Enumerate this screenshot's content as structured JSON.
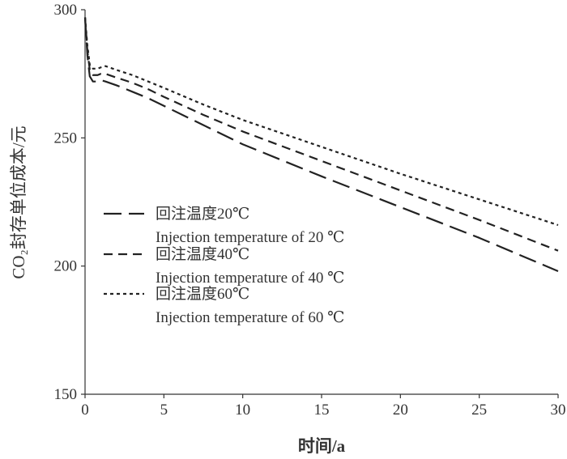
{
  "chart_data": {
    "type": "line",
    "title": "",
    "xlabel": "时间/a",
    "ylabel": "CO₂封存单位成本/元",
    "xlim": [
      0,
      30
    ],
    "ylim": [
      150,
      300
    ],
    "xticks": [
      0,
      5,
      10,
      15,
      20,
      25,
      30
    ],
    "yticks": [
      150,
      200,
      250,
      300
    ],
    "grid": false,
    "legend_position": "left-center",
    "series": [
      {
        "name": "回注温度20℃",
        "name_en": "Injection temperature of 20 ℃",
        "dash": "long-dash",
        "color": "#222222",
        "x": [
          0,
          0.15,
          0.3,
          0.5,
          0.8,
          1.0,
          1.3,
          2,
          3,
          4,
          5,
          7.5,
          10,
          15,
          20,
          25,
          30
        ],
        "y": [
          297,
          282,
          274,
          272,
          272,
          272.5,
          272,
          270.5,
          268,
          265.5,
          262.5,
          255,
          247.5,
          235,
          223,
          211,
          198
        ]
      },
      {
        "name": "回注温度40℃",
        "name_en": "Injection temperature of 40 ℃",
        "dash": "dash",
        "color": "#222222",
        "x": [
          0,
          0.15,
          0.3,
          0.5,
          0.8,
          1.0,
          1.3,
          2,
          3,
          4,
          5,
          7.5,
          10,
          15,
          20,
          25,
          30
        ],
        "y": [
          297,
          284,
          276.5,
          274.5,
          274.5,
          275,
          275,
          273.5,
          271.5,
          269,
          266,
          259,
          252.5,
          241,
          229.5,
          218,
          206
        ]
      },
      {
        "name": "回注温度60℃",
        "name_en": "Injection temperature of 60 ℃",
        "dash": "dot",
        "color": "#222222",
        "x": [
          0,
          0.15,
          0.3,
          0.5,
          0.8,
          1.0,
          1.3,
          2,
          3,
          4,
          5,
          7.5,
          10,
          15,
          20,
          25,
          30
        ],
        "y": [
          297,
          286,
          278.5,
          277,
          277,
          277.5,
          278,
          276.5,
          274.5,
          272,
          269.5,
          263,
          257,
          246.5,
          236,
          226,
          216
        ]
      }
    ]
  }
}
